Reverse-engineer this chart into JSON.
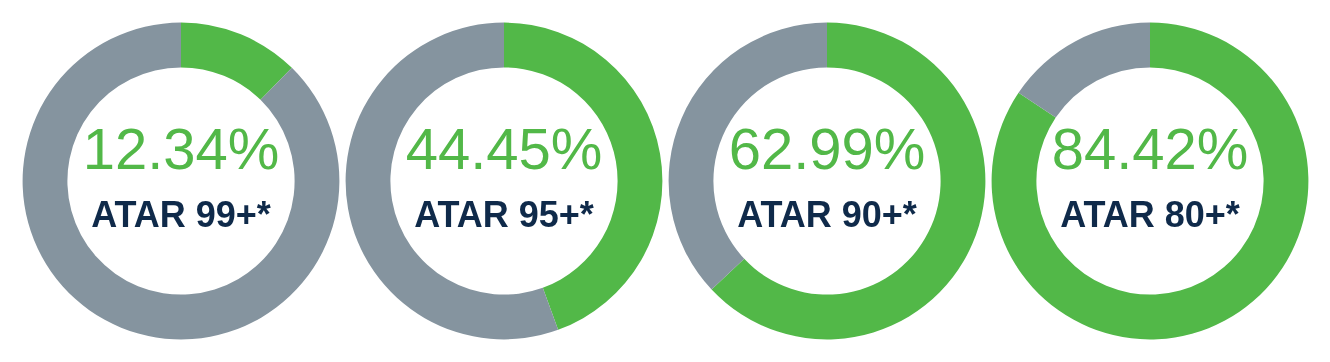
{
  "chart_data": [
    {
      "type": "donut",
      "title": "ATAR 99+*",
      "categories": [
        null,
        null
      ],
      "values": [
        12.34,
        87.66
      ],
      "colors": [
        "#52b848",
        "#85949f"
      ],
      "value_labels": [
        "12.34%",
        null
      ]
    },
    {
      "type": "donut",
      "title": "ATAR 95+*",
      "categories": [
        null,
        null
      ],
      "values": [
        44.45,
        55.55
      ],
      "colors": [
        "#52b848",
        "#85949f"
      ],
      "value_labels": [
        "44.45%",
        null
      ]
    },
    {
      "type": "donut",
      "title": "ATAR 90+*",
      "categories": [
        null,
        null
      ],
      "values": [
        62.99,
        37.01
      ],
      "colors": [
        "#52b848",
        "#85949f"
      ],
      "value_labels": [
        "62.99%",
        null
      ]
    },
    {
      "type": "donut",
      "title": "ATAR 80+*",
      "categories": [
        null,
        null
      ],
      "values": [
        84.42,
        15.58
      ],
      "colors": [
        "#52b848",
        "#85949f"
      ],
      "value_labels": [
        "84.42%",
        null
      ]
    }
  ]
}
